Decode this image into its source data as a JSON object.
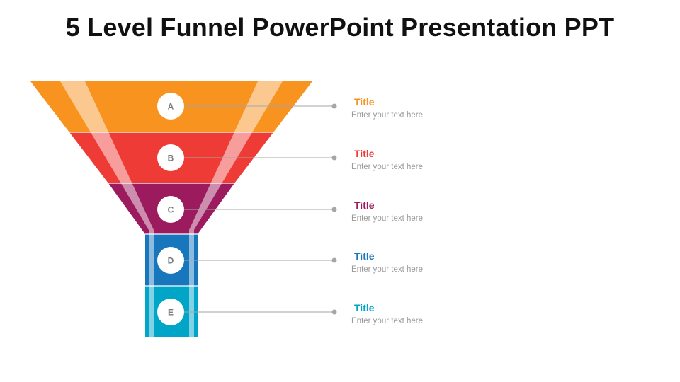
{
  "slide": {
    "title": "5 Level Funnel PowerPoint Presentation PPT"
  },
  "levels": [
    {
      "letter": "A",
      "title": "Title",
      "text": "Enter your text here",
      "color": "#F7931E"
    },
    {
      "letter": "B",
      "title": "Title",
      "text": "Enter your text here",
      "color": "#EE3B36"
    },
    {
      "letter": "C",
      "title": "Title",
      "text": "Enter your text here",
      "color": "#9B1B5E"
    },
    {
      "letter": "D",
      "title": "Title",
      "text": "Enter your text here",
      "color": "#1776BC"
    },
    {
      "letter": "E",
      "title": "Title",
      "text": "Enter your text here",
      "color": "#00A5C8"
    }
  ]
}
